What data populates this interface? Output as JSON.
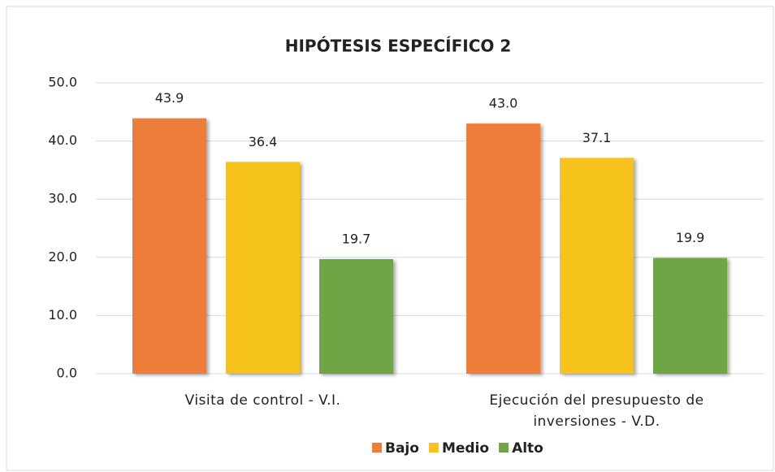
{
  "chart_data": {
    "type": "bar",
    "title": "HIPÓTESIS ESPECÍFICO 2",
    "categories": [
      "Visita de control - V.I.",
      "Ejecución del presupuesto de inversiones - V.D."
    ],
    "series": [
      {
        "name": "Bajo",
        "color": "#ef7d3a",
        "values": [
          43.9,
          43.0
        ],
        "value_labels": [
          "43.9",
          "43.0"
        ]
      },
      {
        "name": "Medio",
        "color": "#f6c21c",
        "values": [
          36.4,
          37.1
        ],
        "value_labels": [
          "36.4",
          "37.1"
        ]
      },
      {
        "name": "Alto",
        "color": "#6fa645",
        "values": [
          19.7,
          19.9
        ],
        "value_labels": [
          "19.7",
          "19.9"
        ]
      }
    ],
    "ylim": [
      0,
      50
    ],
    "yticks": [
      {
        "value": 0,
        "label": "0.0"
      },
      {
        "value": 10,
        "label": "10.0"
      },
      {
        "value": 20,
        "label": "20.0"
      },
      {
        "value": 30,
        "label": "30.0"
      },
      {
        "value": 40,
        "label": "40.0"
      },
      {
        "value": 50,
        "label": "50.0"
      }
    ],
    "grid": true,
    "legend": "bottom"
  }
}
